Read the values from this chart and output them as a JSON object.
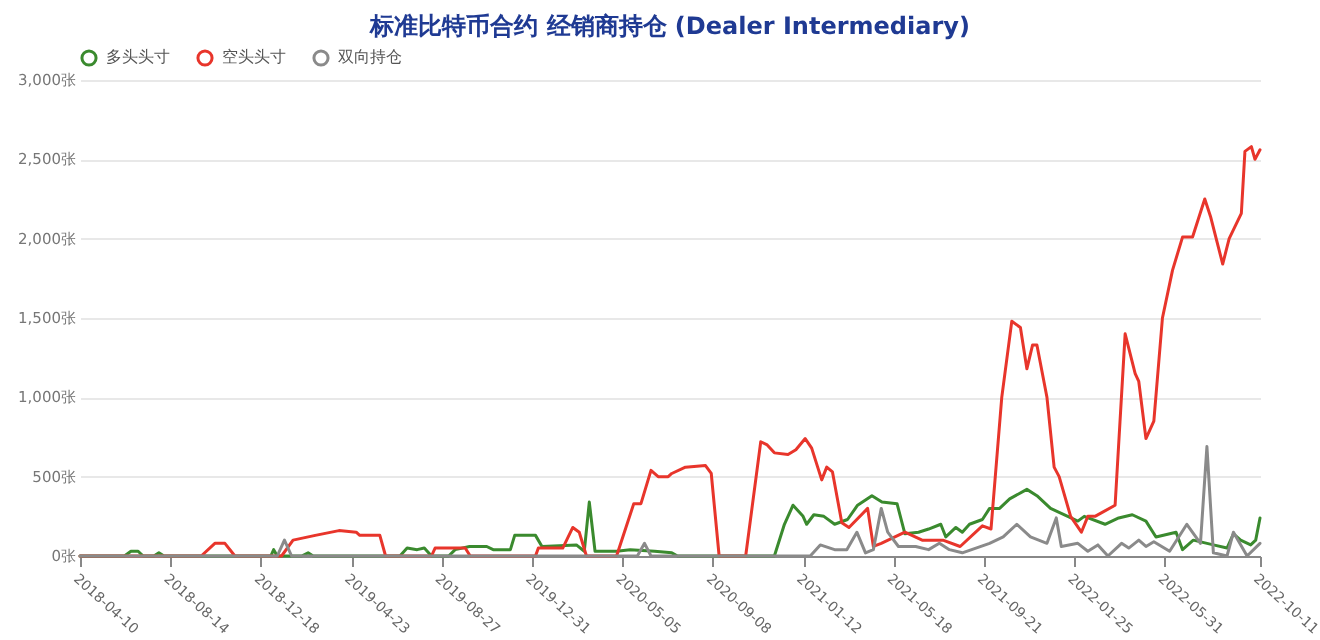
{
  "chart_data": {
    "type": "line",
    "title": "标准比特币合约 经销商持仓 (Dealer Intermediary)",
    "xlim": [
      "2018-04-10",
      "2022-10-11"
    ],
    "xticks": [
      "2018-04-10",
      "2018-08-14",
      "2018-12-18",
      "2019-04-23",
      "2019-08-27",
      "2019-12-31",
      "2020-05-05",
      "2020-09-08",
      "2021-01-12",
      "2021-05-18",
      "2021-09-21",
      "2022-01-25",
      "2022-05-31",
      "2022-10-11"
    ],
    "ylim": [
      0,
      3000
    ],
    "yticks": [
      {
        "value": 0,
        "label": "0张"
      },
      {
        "value": 500,
        "label": "500张"
      },
      {
        "value": 1000,
        "label": "1,000张"
      },
      {
        "value": 1500,
        "label": "1,500张"
      },
      {
        "value": 2000,
        "label": "2,000张"
      },
      {
        "value": 2500,
        "label": "2,500张"
      },
      {
        "value": 3000,
        "label": "3,000张"
      }
    ],
    "grid": "y",
    "legend": "top",
    "line_style": "solid",
    "series": [
      {
        "name": "多头头寸",
        "color": "#3a8a2e",
        "x": [
          "2018-04-10",
          "2018-06-11",
          "2018-06-20",
          "2018-06-30",
          "2018-07-07",
          "2018-07-22",
          "2018-07-29",
          "2018-08-05",
          "2019-01-01",
          "2019-01-05",
          "2019-01-10",
          "2019-02-13",
          "2019-02-22",
          "2019-03-01",
          "2019-06-30",
          "2019-07-10",
          "2019-07-24",
          "2019-08-03",
          "2019-08-13",
          "2019-09-06",
          "2019-09-15",
          "2019-10-05",
          "2019-10-29",
          "2019-11-07",
          "2019-12-01",
          "2019-12-07",
          "2020-01-05",
          "2020-01-14",
          "2020-03-02",
          "2020-03-13",
          "2020-03-20",
          "2020-03-28",
          "2020-04-27",
          "2020-05-16",
          "2020-06-19",
          "2020-07-13",
          "2020-07-21",
          "2020-12-03",
          "2020-12-17",
          "2020-12-29",
          "2021-01-12",
          "2021-01-17",
          "2021-01-27",
          "2021-02-10",
          "2021-02-25",
          "2021-03-15",
          "2021-03-29",
          "2021-04-18",
          "2021-05-02",
          "2021-05-23",
          "2021-06-03",
          "2021-06-22",
          "2021-07-06",
          "2021-07-23",
          "2021-07-30",
          "2021-08-13",
          "2021-08-22",
          "2021-09-01",
          "2021-09-19",
          "2021-09-29",
          "2021-10-13",
          "2021-10-27",
          "2021-11-20",
          "2021-12-04",
          "2021-12-23",
          "2022-01-16",
          "2022-01-30",
          "2022-02-08",
          "2022-03-09",
          "2022-03-28",
          "2022-04-16",
          "2022-05-05",
          "2022-05-19",
          "2022-06-16",
          "2022-06-25",
          "2022-07-10",
          "2022-08-07",
          "2022-08-26",
          "2022-09-04",
          "2022-09-14",
          "2022-09-28",
          "2022-10-05",
          "2022-10-11"
        ],
        "values": [
          0,
          0,
          30,
          30,
          0,
          0,
          20,
          0,
          0,
          40,
          0,
          0,
          20,
          0,
          0,
          50,
          40,
          50,
          0,
          0,
          40,
          60,
          60,
          40,
          40,
          130,
          130,
          60,
          70,
          30,
          340,
          30,
          30,
          40,
          30,
          20,
          0,
          0,
          200,
          320,
          250,
          200,
          260,
          250,
          200,
          230,
          320,
          380,
          340,
          330,
          140,
          150,
          170,
          200,
          120,
          180,
          150,
          200,
          230,
          300,
          300,
          360,
          420,
          380,
          300,
          250,
          220,
          250,
          200,
          240,
          260,
          220,
          120,
          150,
          40,
          100,
          70,
          50,
          140,
          100,
          70,
          100,
          240
        ]
      },
      {
        "name": "空头头寸",
        "color": "#e8352b",
        "x": [
          "2018-04-10",
          "2018-09-26",
          "2018-10-15",
          "2018-10-29",
          "2018-11-12",
          "2019-01-16",
          "2019-02-01",
          "2019-03-04",
          "2019-04-06",
          "2019-04-30",
          "2019-05-05",
          "2019-06-02",
          "2019-06-10",
          "2019-08-13",
          "2019-08-18",
          "2019-09-29",
          "2019-10-06",
          "2020-01-05",
          "2020-01-09",
          "2020-02-12",
          "2020-02-26",
          "2020-03-06",
          "2020-03-16",
          "2020-04-27",
          "2020-05-21",
          "2020-05-31",
          "2020-06-14",
          "2020-06-24",
          "2020-07-08",
          "2020-07-13",
          "2020-08-01",
          "2020-08-29",
          "2020-09-06",
          "2020-09-17",
          "2020-10-24",
          "2020-11-14",
          "2020-11-23",
          "2020-12-03",
          "2020-12-22",
          "2021-01-02",
          "2021-01-15",
          "2021-01-24",
          "2021-02-07",
          "2021-02-14",
          "2021-02-22",
          "2021-03-07",
          "2021-03-17",
          "2021-04-12",
          "2021-04-20",
          "2021-05-01",
          "2021-06-03",
          "2021-06-27",
          "2021-07-26",
          "2021-08-19",
          "2021-09-19",
          "2021-10-01",
          "2021-10-16",
          "2021-10-30",
          "2021-11-11",
          "2021-11-20",
          "2021-11-28",
          "2021-12-04",
          "2021-12-18",
          "2021-12-28",
          "2022-01-04",
          "2022-01-20",
          "2022-02-04",
          "2022-02-13",
          "2022-02-23",
          "2022-03-23",
          "2022-04-06",
          "2022-04-20",
          "2022-04-25",
          "2022-05-05",
          "2022-05-16",
          "2022-05-28",
          "2022-06-11",
          "2022-06-25",
          "2022-07-09",
          "2022-07-26",
          "2022-08-03",
          "2022-08-20",
          "2022-08-29",
          "2022-09-15",
          "2022-09-20",
          "2022-09-29",
          "2022-10-04",
          "2022-10-11"
        ],
        "values": [
          0,
          0,
          80,
          80,
          0,
          0,
          100,
          130,
          160,
          150,
          130,
          130,
          0,
          0,
          50,
          50,
          0,
          0,
          50,
          50,
          180,
          150,
          0,
          0,
          330,
          330,
          540,
          500,
          500,
          520,
          560,
          570,
          520,
          0,
          0,
          720,
          700,
          650,
          640,
          670,
          740,
          680,
          480,
          560,
          530,
          210,
          180,
          300,
          60,
          80,
          150,
          100,
          100,
          60,
          190,
          170,
          1000,
          1480,
          1440,
          1180,
          1330,
          1330,
          1000,
          560,
          500,
          250,
          150,
          250,
          250,
          320,
          1400,
          1150,
          1100,
          740,
          850,
          1500,
          1800,
          2010,
          2010,
          2250,
          2140,
          1840,
          2000,
          2160,
          2550,
          2580,
          2500,
          2560
        ]
      },
      {
        "name": "双向持仓",
        "color": "#8a8a8a",
        "x": [
          "2018-04-10",
          "2019-01-10",
          "2019-01-20",
          "2019-01-30",
          "2020-05-26",
          "2020-06-05",
          "2020-06-14",
          "2021-01-22",
          "2021-02-05",
          "2021-02-25",
          "2021-03-14",
          "2021-03-28",
          "2021-04-09",
          "2021-04-20",
          "2021-05-01",
          "2021-05-10",
          "2021-05-25",
          "2021-06-18",
          "2021-07-06",
          "2021-07-21",
          "2021-08-04",
          "2021-08-22",
          "2021-09-10",
          "2021-09-29",
          "2021-10-18",
          "2021-11-06",
          "2021-11-25",
          "2021-12-18",
          "2021-12-31",
          "2022-01-07",
          "2022-01-30",
          "2022-02-13",
          "2022-02-27",
          "2022-03-13",
          "2022-04-01",
          "2022-04-11",
          "2022-04-25",
          "2022-05-05",
          "2022-05-16",
          "2022-06-07",
          "2022-07-01",
          "2022-07-20",
          "2022-07-29",
          "2022-08-07",
          "2022-08-26",
          "2022-09-04",
          "2022-09-23",
          "2022-10-11"
        ],
        "values": [
          0,
          0,
          100,
          0,
          0,
          80,
          0,
          0,
          70,
          40,
          40,
          150,
          20,
          40,
          300,
          150,
          60,
          60,
          40,
          80,
          40,
          20,
          50,
          80,
          120,
          200,
          120,
          80,
          240,
          60,
          80,
          30,
          70,
          0,
          80,
          50,
          100,
          60,
          90,
          30,
          200,
          80,
          690,
          20,
          0,
          150,
          0,
          80
        ]
      }
    ]
  }
}
